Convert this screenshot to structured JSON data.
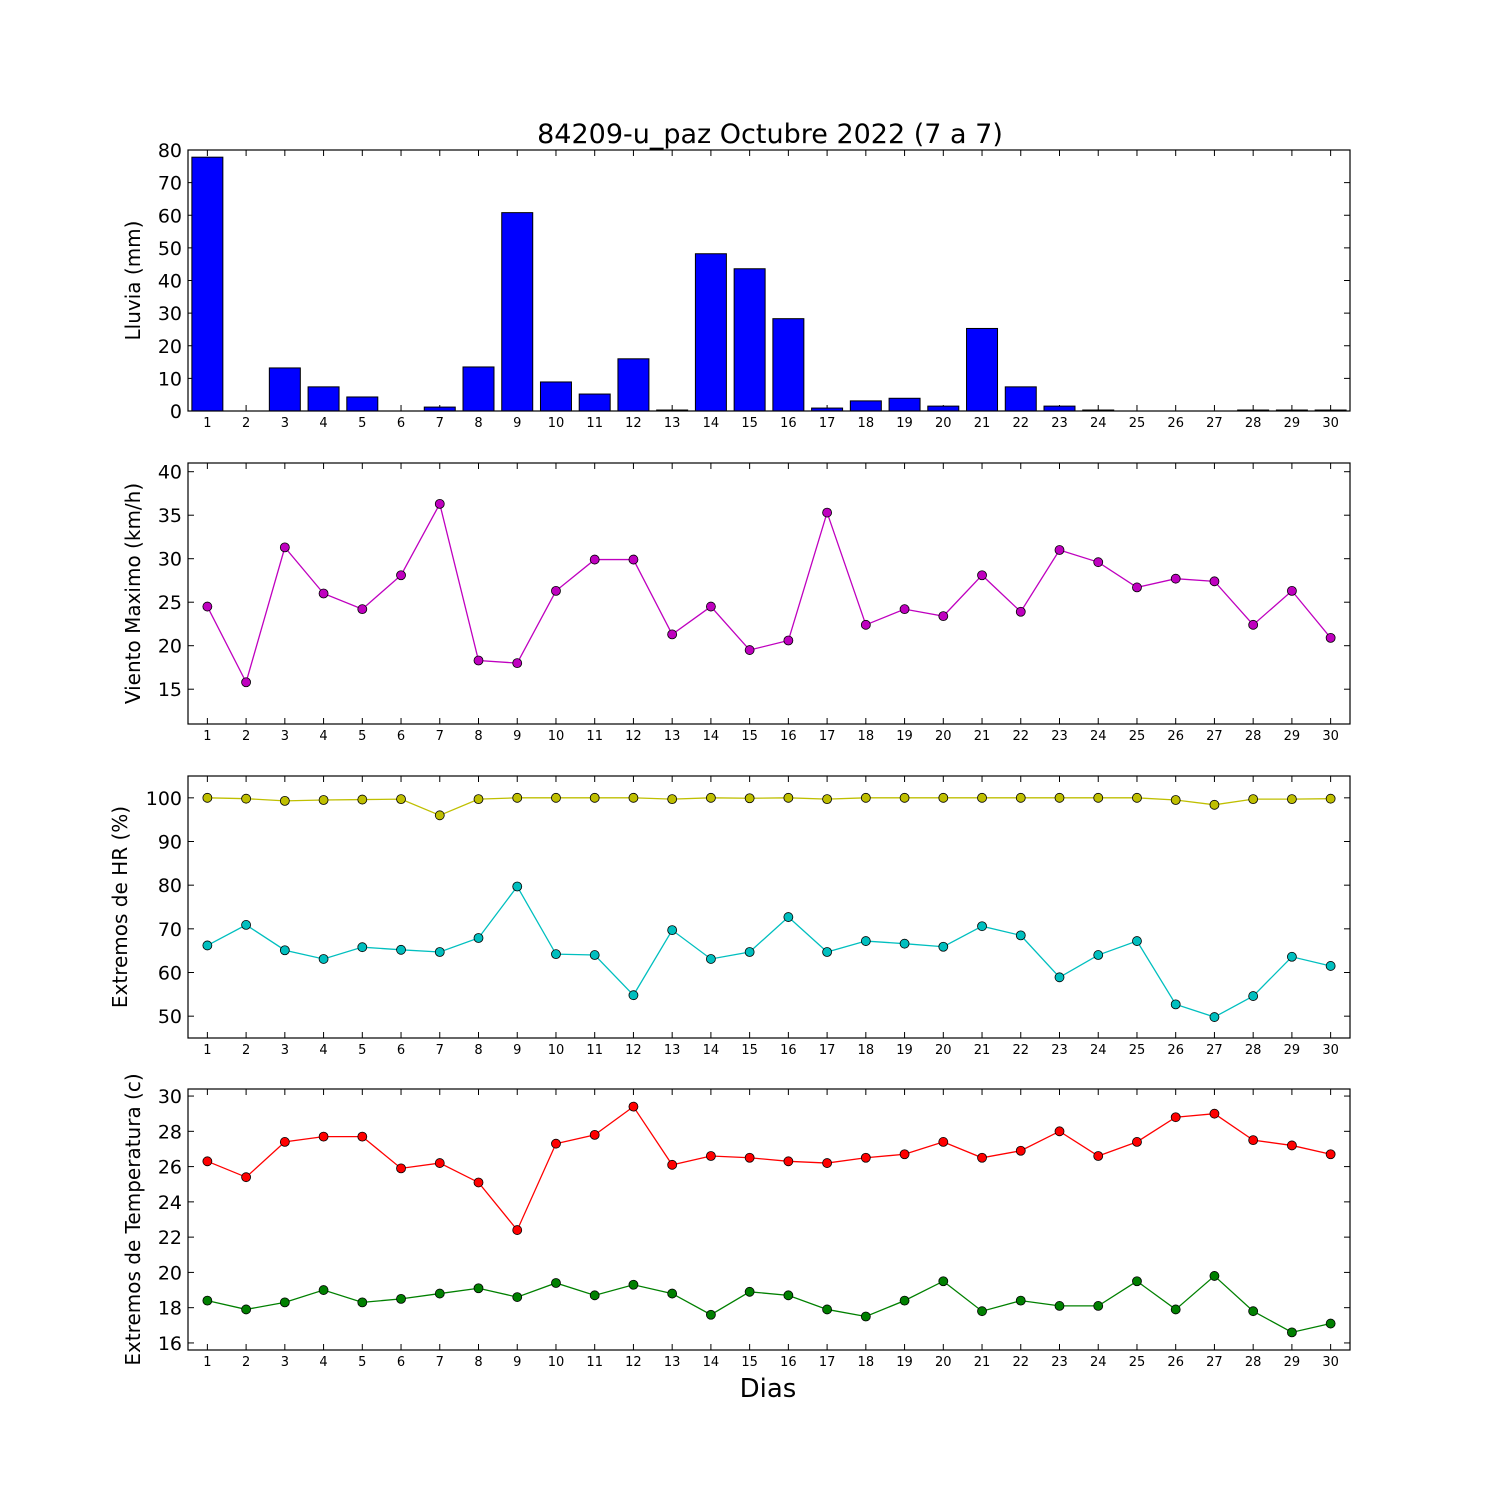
{
  "title": "84209-u_paz Octubre 2022  (7 a 7)",
  "xlabel": "Dias",
  "chart_data": [
    {
      "type": "bar",
      "ylabel": "Lluvia (mm)",
      "ylim": [
        0,
        80
      ],
      "yticks": [
        0,
        10,
        20,
        30,
        40,
        50,
        60,
        70,
        80
      ],
      "x": [
        1,
        2,
        3,
        4,
        5,
        6,
        7,
        8,
        9,
        10,
        11,
        12,
        13,
        14,
        15,
        16,
        17,
        18,
        19,
        20,
        21,
        22,
        23,
        24,
        25,
        26,
        27,
        28,
        29,
        30
      ],
      "series": [
        {
          "color": "#0000ff",
          "values": [
            77.8,
            0,
            13.2,
            7.4,
            4.3,
            0,
            1.2,
            13.5,
            60.8,
            8.9,
            5.2,
            16.0,
            0.3,
            48.2,
            43.6,
            28.3,
            0.9,
            3.1,
            3.9,
            1.5,
            25.3,
            7.4,
            1.5,
            0.3,
            0,
            0,
            0,
            0.3,
            0.3,
            0.3
          ]
        }
      ]
    },
    {
      "type": "line",
      "ylabel": "Viento Maximo (km/h)",
      "ylim": [
        11,
        41
      ],
      "yticks": [
        15,
        20,
        25,
        30,
        35,
        40
      ],
      "x": [
        1,
        2,
        3,
        4,
        5,
        6,
        7,
        8,
        9,
        10,
        11,
        12,
        13,
        14,
        15,
        16,
        17,
        18,
        19,
        20,
        21,
        22,
        23,
        24,
        25,
        26,
        27,
        28,
        29,
        30
      ],
      "series": [
        {
          "color": "#bf00bf",
          "values": [
            24.5,
            15.8,
            31.3,
            26.0,
            24.2,
            28.1,
            36.3,
            18.3,
            18.0,
            26.3,
            29.9,
            29.9,
            21.3,
            24.5,
            19.5,
            20.6,
            35.3,
            22.4,
            24.2,
            23.4,
            28.1,
            23.9,
            31.0,
            29.6,
            26.7,
            27.7,
            27.4,
            22.4,
            26.3,
            20.9
          ]
        }
      ]
    },
    {
      "type": "line",
      "ylabel": "Extremos de HR (%)",
      "ylim": [
        45,
        105
      ],
      "yticks": [
        50,
        60,
        70,
        80,
        90,
        100
      ],
      "x": [
        1,
        2,
        3,
        4,
        5,
        6,
        7,
        8,
        9,
        10,
        11,
        12,
        13,
        14,
        15,
        16,
        17,
        18,
        19,
        20,
        21,
        22,
        23,
        24,
        25,
        26,
        27,
        28,
        29,
        30
      ],
      "series": [
        {
          "color": "#bfbf00",
          "values": [
            100,
            99.8,
            99.3,
            99.5,
            99.6,
            99.7,
            96.0,
            99.7,
            100,
            100,
            100,
            100,
            99.7,
            100,
            99.9,
            100,
            99.7,
            100,
            100,
            100,
            100,
            100,
            100,
            100,
            100,
            99.5,
            98.4,
            99.7,
            99.7,
            99.8
          ]
        },
        {
          "color": "#00bfbf",
          "values": [
            66.2,
            70.9,
            65.1,
            63.1,
            65.8,
            65.2,
            64.7,
            67.9,
            79.7,
            64.2,
            64.0,
            54.8,
            69.7,
            63.1,
            64.7,
            72.7,
            64.7,
            67.2,
            66.6,
            65.9,
            70.6,
            68.5,
            58.9,
            64.0,
            67.2,
            52.7,
            49.8,
            54.6,
            63.6,
            61.5
          ]
        }
      ]
    },
    {
      "type": "line",
      "ylabel": "Extremos de Temperatura (c)",
      "ylim": [
        15.6,
        30.4
      ],
      "yticks": [
        16,
        18,
        20,
        22,
        24,
        26,
        28,
        30
      ],
      "x": [
        1,
        2,
        3,
        4,
        5,
        6,
        7,
        8,
        9,
        10,
        11,
        12,
        13,
        14,
        15,
        16,
        17,
        18,
        19,
        20,
        21,
        22,
        23,
        24,
        25,
        26,
        27,
        28,
        29,
        30
      ],
      "series": [
        {
          "color": "#ff0000",
          "values": [
            26.3,
            25.4,
            27.4,
            27.7,
            27.7,
            25.9,
            26.2,
            25.1,
            22.4,
            27.3,
            27.8,
            29.4,
            26.1,
            26.6,
            26.5,
            26.3,
            26.2,
            26.5,
            26.7,
            27.4,
            26.5,
            26.9,
            28.0,
            26.6,
            27.4,
            28.8,
            29.0,
            27.5,
            27.2,
            26.7
          ]
        },
        {
          "color": "#008000",
          "values": [
            18.4,
            17.9,
            18.3,
            19.0,
            18.3,
            18.5,
            18.8,
            19.1,
            18.6,
            19.4,
            18.7,
            19.3,
            18.8,
            17.6,
            18.9,
            18.7,
            17.9,
            17.5,
            18.4,
            19.5,
            17.8,
            18.4,
            18.1,
            18.1,
            19.5,
            17.9,
            19.8,
            17.8,
            16.6,
            17.1
          ]
        }
      ]
    }
  ]
}
